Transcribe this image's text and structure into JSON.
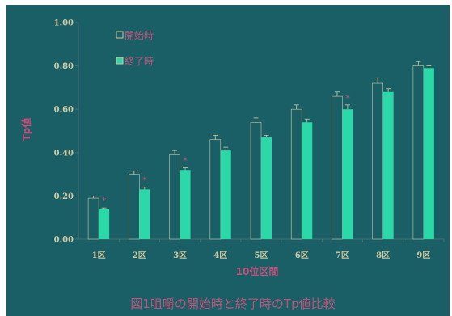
{
  "chart_data": {
    "type": "bar",
    "title": "図1咀嚼の開始時と終了時のTp値比較",
    "xlabel": "10位区間",
    "ylabel": "Tp値",
    "ylim": [
      0,
      1.0
    ],
    "yticks": [
      "0.00",
      "0.20",
      "0.40",
      "0.60",
      "0.80",
      "1.00"
    ],
    "categories": [
      "1区",
      "2区",
      "3区",
      "4区",
      "5区",
      "6区",
      "7区",
      "8区",
      "9区"
    ],
    "series": [
      {
        "name": "開始時",
        "values": [
          0.19,
          0.3,
          0.39,
          0.46,
          0.54,
          0.6,
          0.66,
          0.72,
          0.8
        ],
        "errors": [
          0.01,
          0.015,
          0.02,
          0.02,
          0.02,
          0.02,
          0.02,
          0.025,
          0.02
        ]
      },
      {
        "name": "終了時",
        "values": [
          0.14,
          0.23,
          0.32,
          0.41,
          0.47,
          0.54,
          0.6,
          0.68,
          0.79
        ],
        "errors": [
          0.005,
          0.01,
          0.01,
          0.015,
          0.01,
          0.015,
          0.02,
          0.015,
          0.01
        ]
      }
    ],
    "annotations": [
      "*",
      "*",
      "*",
      "",
      "",
      "",
      "*",
      "",
      ""
    ],
    "grid": false,
    "legend_position": "top-left"
  },
  "colors": {
    "background": "#1a5f66",
    "series_start": "#1a5f66",
    "series_end": "#2ad8a8",
    "bar_outline": "#cfc9a0",
    "text_accent": "#c0527a"
  }
}
